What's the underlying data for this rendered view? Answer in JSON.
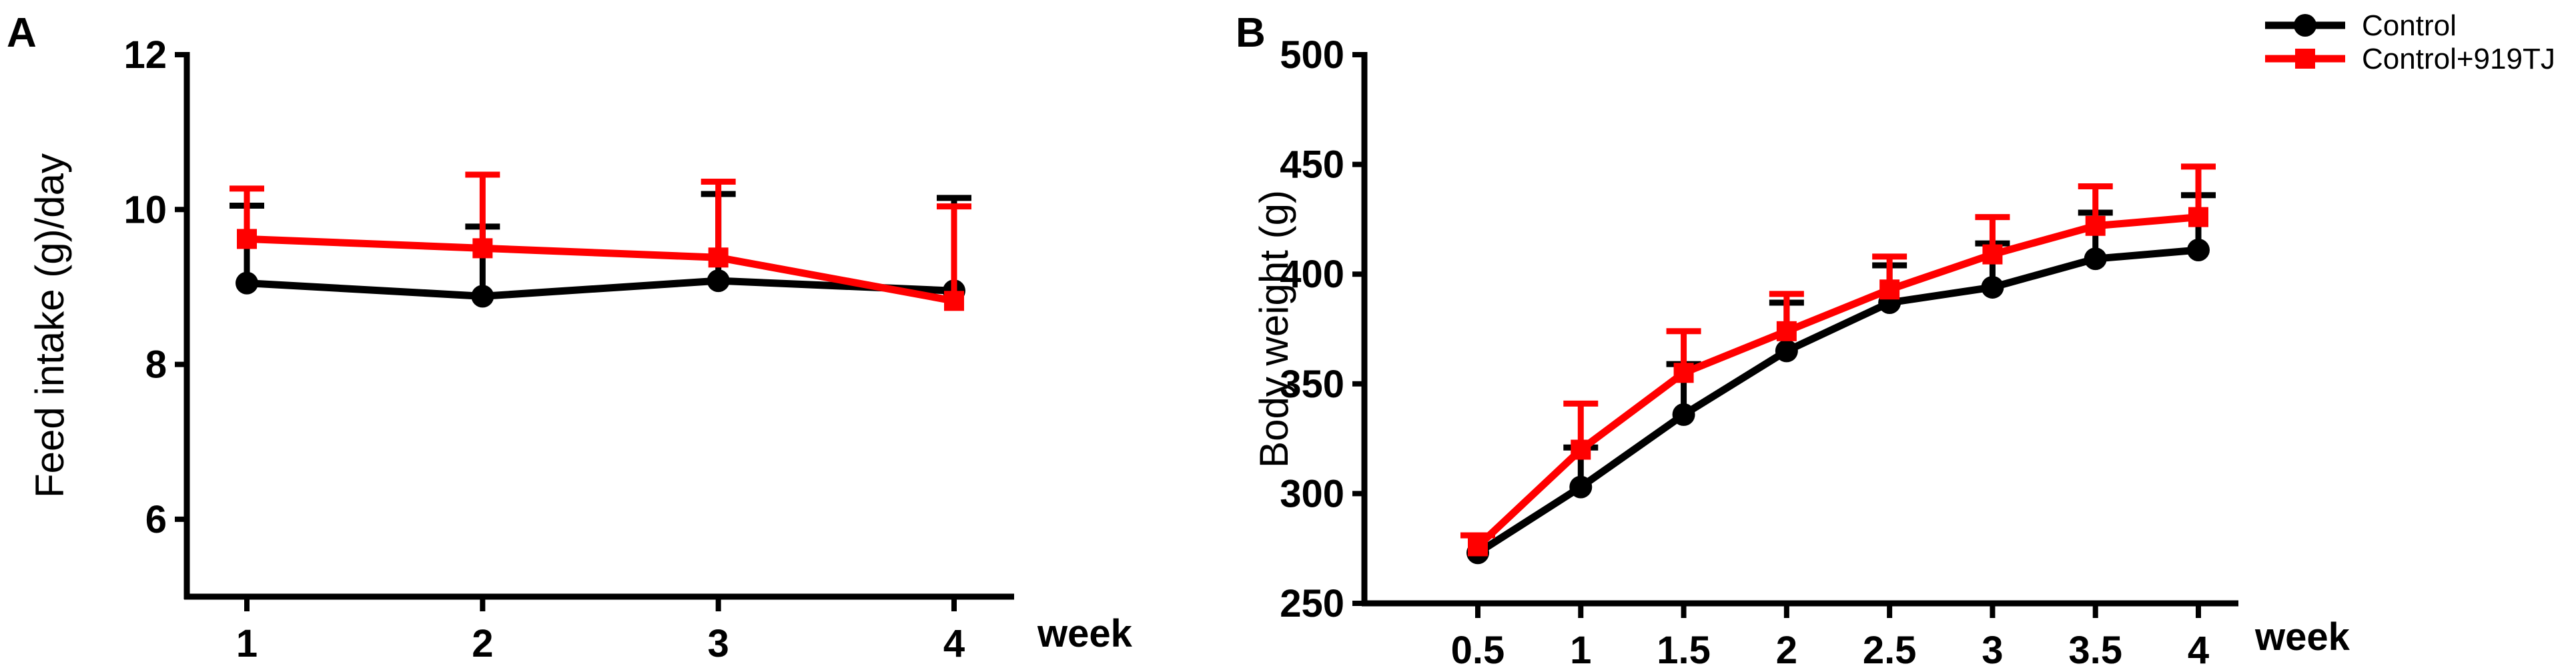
{
  "colors": {
    "control": "#000000",
    "treated": "#ff0000"
  },
  "legend": [
    {
      "label": "Control",
      "color": "#000000",
      "marker": "circle"
    },
    {
      "label": "Control+919TJ",
      "color": "#ff0000",
      "marker": "square"
    }
  ],
  "chart_data": [
    {
      "type": "line",
      "panel": "A",
      "title": "",
      "xlabel": "week",
      "ylabel": "Feed intake (g)/day",
      "categories": [
        "1",
        "2",
        "3",
        "4"
      ],
      "x": [
        1,
        2,
        3,
        4
      ],
      "ylim": [
        5,
        12
      ],
      "yticks": [
        6,
        8,
        10,
        12
      ],
      "grid": false,
      "series": [
        {
          "name": "Control",
          "color": "#000000",
          "marker": "circle",
          "values": [
            9.05,
            8.88,
            9.08,
            8.95
          ],
          "errors": [
            1.0,
            0.9,
            1.12,
            1.2
          ]
        },
        {
          "name": "Control+919TJ",
          "color": "#ff0000",
          "marker": "square",
          "values": [
            9.62,
            9.5,
            9.38,
            8.82
          ],
          "errors": [
            0.65,
            0.95,
            0.98,
            1.22
          ]
        }
      ]
    },
    {
      "type": "line",
      "panel": "B",
      "title": "",
      "xlabel": "week",
      "ylabel": "Body weight (g)",
      "categories": [
        "0.5",
        "1",
        "1.5",
        "2",
        "2.5",
        "3",
        "3.5",
        "4"
      ],
      "x": [
        0.5,
        1,
        1.5,
        2,
        2.5,
        3,
        3.5,
        4
      ],
      "ylim": [
        250,
        500
      ],
      "yticks": [
        250,
        300,
        350,
        400,
        450,
        500
      ],
      "grid": false,
      "legend_position": "top-right",
      "series": [
        {
          "name": "Control",
          "color": "#000000",
          "marker": "circle",
          "values": [
            273,
            303,
            336,
            365,
            387,
            394,
            407,
            411
          ],
          "errors": [
            8,
            18,
            23,
            22,
            17,
            20,
            21,
            25
          ]
        },
        {
          "name": "Control+919TJ",
          "color": "#ff0000",
          "marker": "square",
          "values": [
            276,
            320,
            355,
            374,
            393,
            409,
            422,
            426
          ],
          "errors": [
            5,
            21,
            19,
            17,
            15,
            17,
            18,
            23
          ]
        }
      ]
    }
  ]
}
